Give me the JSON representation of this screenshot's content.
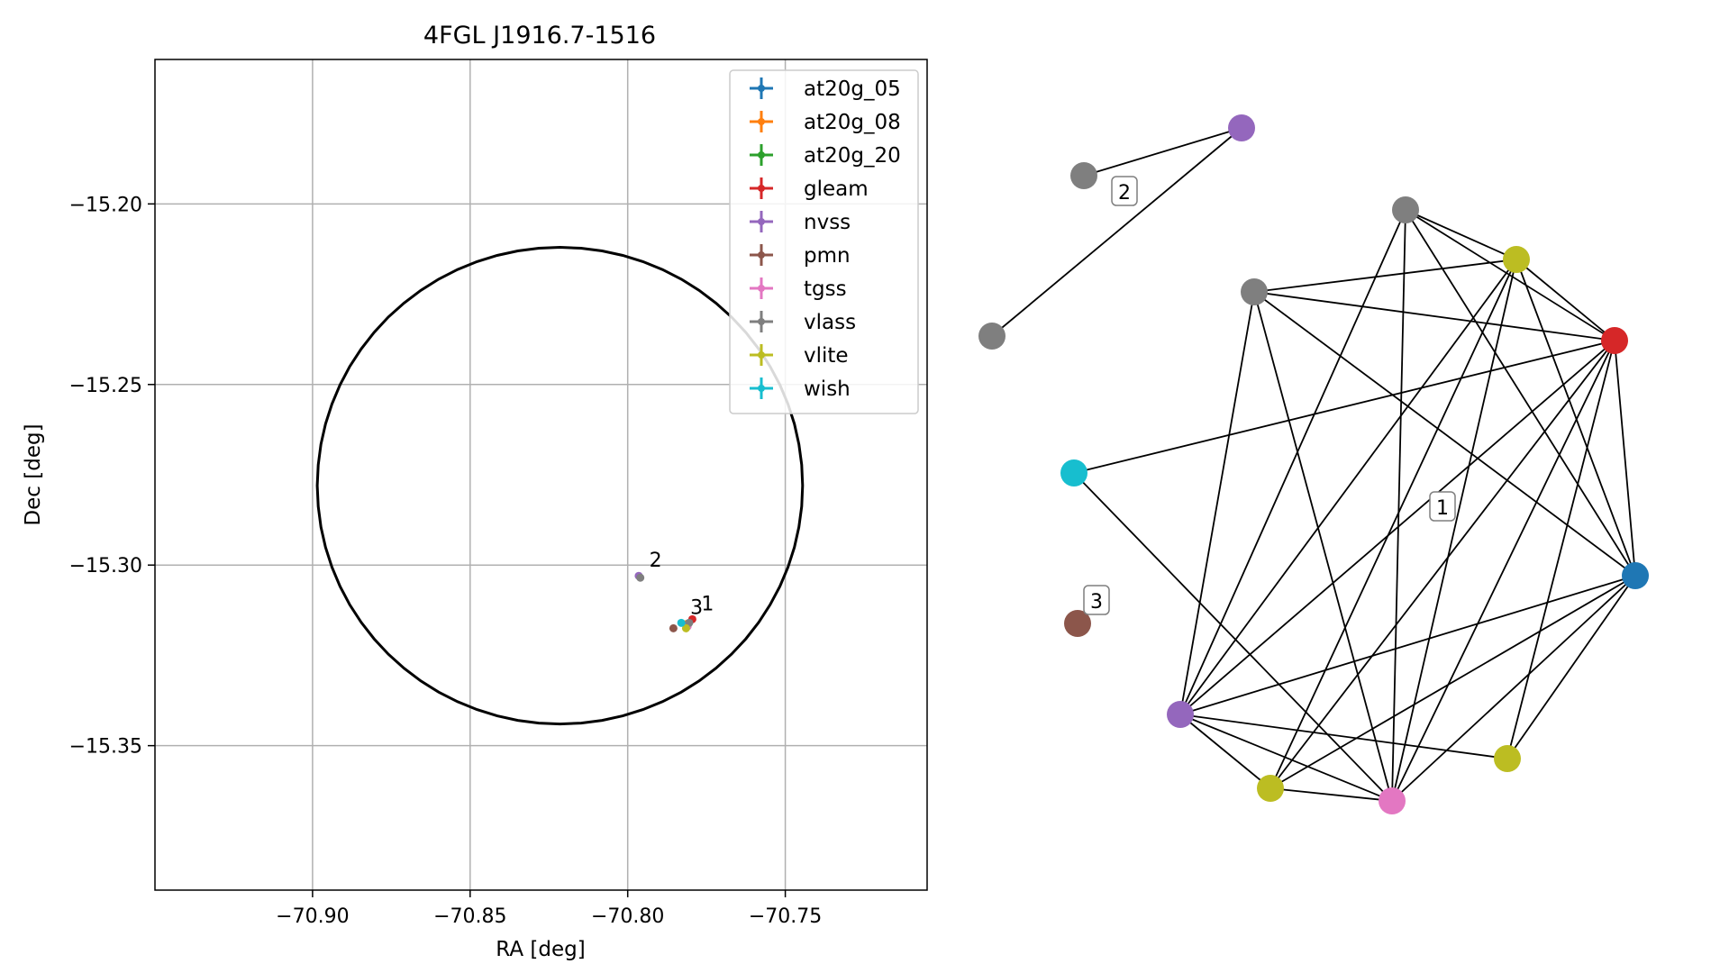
{
  "chart_data": [
    {
      "type": "scatter",
      "title": "4FGL J1916.7-1516",
      "xlabel": "RA [deg]",
      "ylabel": "Dec [deg]",
      "xlim": [
        -70.95,
        -70.705
      ],
      "ylim": [
        -15.39,
        -15.16
      ],
      "xticks": [
        -70.9,
        -70.85,
        -70.8,
        -70.75
      ],
      "xtick_labels": [
        "−70.90",
        "−70.85",
        "−70.80",
        "−70.75"
      ],
      "yticks": [
        -15.2,
        -15.25,
        -15.3,
        -15.35
      ],
      "ytick_labels": [
        "−15.20",
        "−15.25",
        "−15.30",
        "−15.35"
      ],
      "grid": true,
      "legend_placement": "top-right",
      "error_ellipse": {
        "center_ra": -70.8215,
        "center_dec": -15.278,
        "semi_ra": 0.077,
        "semi_dec": 0.066
      },
      "series": [
        {
          "name": "at20g_05",
          "color": "#1f77b4",
          "points": [
            {
              "ra": -70.7815,
              "dec": -15.3165
            }
          ]
        },
        {
          "name": "at20g_08",
          "color": "#ff7f0e",
          "points": [
            {
              "ra": -70.7812,
              "dec": -15.3163
            }
          ]
        },
        {
          "name": "at20g_20",
          "color": "#2ca02c",
          "points": [
            {
              "ra": -70.781,
              "dec": -15.3168
            }
          ]
        },
        {
          "name": "gleam",
          "color": "#d62728",
          "points": [
            {
              "ra": -70.7795,
              "dec": -15.315
            }
          ]
        },
        {
          "name": "nvss",
          "color": "#9467bd",
          "points": [
            {
              "ra": -70.7965,
              "dec": -15.303
            },
            {
              "ra": -70.7812,
              "dec": -15.3167
            }
          ]
        },
        {
          "name": "pmn",
          "color": "#8c564b",
          "points": [
            {
              "ra": -70.7855,
              "dec": -15.3175
            }
          ]
        },
        {
          "name": "tgss",
          "color": "#e377c2",
          "points": [
            {
              "ra": -70.781,
              "dec": -15.317
            }
          ]
        },
        {
          "name": "vlass",
          "color": "#7f7f7f",
          "points": [
            {
              "ra": -70.796,
              "dec": -15.3035
            },
            {
              "ra": -70.7805,
              "dec": -15.316
            }
          ]
        },
        {
          "name": "vlite",
          "color": "#bcbd22",
          "points": [
            {
              "ra": -70.7815,
              "dec": -15.3175
            }
          ]
        },
        {
          "name": "wish",
          "color": "#17becf",
          "points": [
            {
              "ra": -70.783,
              "dec": -15.316
            }
          ]
        }
      ],
      "annotations": [
        {
          "text": "2",
          "ra": -70.796,
          "dec": -15.303
        },
        {
          "text": "3",
          "ra": -70.783,
          "dec": -15.316
        },
        {
          "text": "1",
          "ra": -70.7795,
          "dec": -15.315
        }
      ]
    },
    {
      "type": "network",
      "nodes": [
        {
          "id": "n0",
          "color": "#9467bd"
        },
        {
          "id": "n1",
          "color": "#7f7f7f"
        },
        {
          "id": "n2",
          "color": "#7f7f7f"
        },
        {
          "id": "n3",
          "color": "#7f7f7f"
        },
        {
          "id": "n4",
          "color": "#bcbd22"
        },
        {
          "id": "n5",
          "color": "#7f7f7f"
        },
        {
          "id": "n6",
          "color": "#d62728"
        },
        {
          "id": "n7",
          "color": "#17becf"
        },
        {
          "id": "n8",
          "color": "#1f77b4"
        },
        {
          "id": "n9",
          "color": "#8c564b"
        },
        {
          "id": "n10",
          "color": "#9467bd"
        },
        {
          "id": "n11",
          "color": "#bcbd22"
        },
        {
          "id": "n12",
          "color": "#bcbd22"
        },
        {
          "id": "n13",
          "color": "#e377c2"
        }
      ],
      "edges": [
        [
          "n1",
          "n0"
        ],
        [
          "n0",
          "n2"
        ],
        [
          "n3",
          "n4"
        ],
        [
          "n3",
          "n6"
        ],
        [
          "n3",
          "n8"
        ],
        [
          "n3",
          "n10"
        ],
        [
          "n3",
          "n13"
        ],
        [
          "n5",
          "n4"
        ],
        [
          "n5",
          "n6"
        ],
        [
          "n5",
          "n8"
        ],
        [
          "n5",
          "n10"
        ],
        [
          "n5",
          "n13"
        ],
        [
          "n4",
          "n6"
        ],
        [
          "n4",
          "n8"
        ],
        [
          "n4",
          "n10"
        ],
        [
          "n4",
          "n11"
        ],
        [
          "n4",
          "n13"
        ],
        [
          "n6",
          "n7"
        ],
        [
          "n6",
          "n8"
        ],
        [
          "n6",
          "n10"
        ],
        [
          "n6",
          "n11"
        ],
        [
          "n6",
          "n12"
        ],
        [
          "n6",
          "n13"
        ],
        [
          "n7",
          "n13"
        ],
        [
          "n8",
          "n10"
        ],
        [
          "n8",
          "n11"
        ],
        [
          "n8",
          "n12"
        ],
        [
          "n8",
          "n13"
        ],
        [
          "n10",
          "n11"
        ],
        [
          "n10",
          "n12"
        ],
        [
          "n10",
          "n13"
        ],
        [
          "n11",
          "n13"
        ]
      ],
      "cluster_labels": [
        "1",
        "2",
        "3"
      ]
    }
  ]
}
